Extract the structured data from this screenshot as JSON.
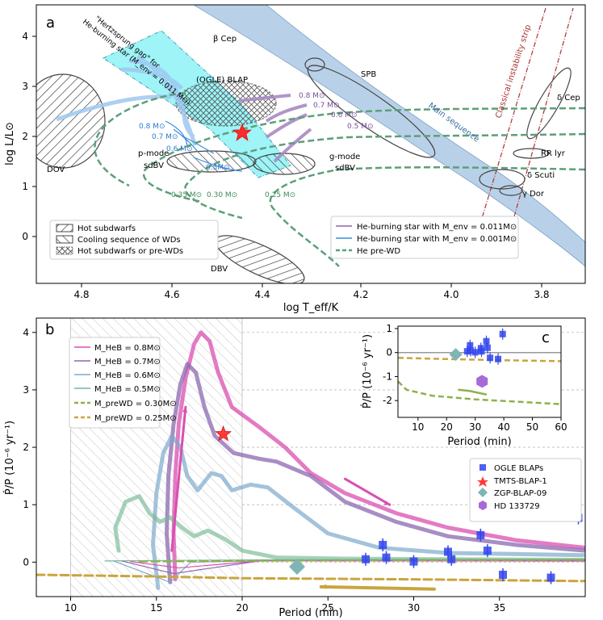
{
  "chart_data": [
    {
      "panel": "a",
      "type": "line",
      "panel_label": "a",
      "xlabel": "log T_eff/K",
      "ylabel": "log L/L⊙",
      "xlim": [
        4.9,
        3.7
      ],
      "ylim": [
        -0.95,
        4.6
      ],
      "x_ticks": [
        "4.8",
        "4.6",
        "4.4",
        "4.2",
        "4.0",
        "3.8"
      ],
      "y_ticks": [
        "0",
        "1",
        "2",
        "3",
        "4"
      ],
      "annotations": {
        "beta_cep": "β Cep",
        "spb": "SPB",
        "blap": "(OGLE) BLAP",
        "dov": "DOV",
        "dbv": "DBV",
        "psdbv_1": "p-mode",
        "psdbv_2": "sdBV",
        "gsdbv_1": "g-mode",
        "gsdbv_2": "sdBV",
        "delta_cep": "δ Cep",
        "rr_lyr": "RR lyr",
        "delta_scuti": "δ Scuti",
        "gamma_dor": "γ Dor",
        "main_sequence": "Main sequence",
        "instability_strip": "Classical instability strip",
        "hertzsprung_1": "\"Hertzsprung gap\" for",
        "hertzsprung_2": "He-burning star (M_env = 0.011 M⊙)"
      },
      "mass_labels_purple": [
        "0.8 M⊙",
        "0.7 M⊙",
        "0.6 M⊙",
        "0.5 M⊙"
      ],
      "mass_labels_blue": [
        "0.8 M⊙",
        "0.7 M⊙",
        "0.6 M⊙",
        "0.5M⊙"
      ],
      "mass_labels_green": [
        "0.35 M⊙",
        "0.30 M⊙",
        "0.25 M⊙"
      ],
      "legend_left": [
        "Hot subdwarfs",
        "Cooling sequence of WDs",
        "Hot subdwarfs or pre-WDs"
      ],
      "legend_right": [
        "He-burning star with M_env = 0.011M⊙",
        "He-burning star with M_env = 0.001M⊙",
        "He pre-WD"
      ],
      "tmts_blap_1": {
        "logT": 4.445,
        "logL": 2.05
      }
    },
    {
      "panel": "b",
      "type": "line",
      "panel_label": "b",
      "xlabel": "Period (min)",
      "ylabel": "Ṗ/P (10⁻⁶ yr⁻¹)",
      "xlim": [
        8,
        40
      ],
      "ylim": [
        -0.6,
        4.25
      ],
      "x_ticks": [
        10,
        15,
        20,
        25,
        30,
        35
      ],
      "y_ticks": [
        0,
        1,
        2,
        3,
        4
      ],
      "shaded_region": [
        10,
        20
      ],
      "legend": [
        "M_HeB = 0.8M⊙",
        "M_HeB = 0.7M⊙",
        "M_HeB = 0.6M⊙",
        "M_HeB = 0.5M⊙",
        "M_preWD = 0.30M⊙",
        "M_preWD = 0.25M⊙"
      ],
      "series_colors": {
        "m08": "#d94fb0",
        "m07": "#8b68b0",
        "m06": "#7ea9cc",
        "m05": "#74b894",
        "w30": "#8fb04c",
        "w25": "#c9a53e"
      },
      "ogle_blaps": [
        {
          "x": 27.2,
          "y": 0.05
        },
        {
          "x": 28.2,
          "y": 0.3
        },
        {
          "x": 28.4,
          "y": 0.08
        },
        {
          "x": 30.0,
          "y": 0.01
        },
        {
          "x": 32.0,
          "y": 0.18
        },
        {
          "x": 32.2,
          "y": 0.05
        },
        {
          "x": 33.9,
          "y": 0.47
        },
        {
          "x": 34.3,
          "y": 0.2
        },
        {
          "x": 35.2,
          "y": -0.22
        },
        {
          "x": 38.0,
          "y": -0.27
        },
        {
          "x": 39.6,
          "y": 0.77
        }
      ],
      "tmts_blap_1": {
        "x": 18.9,
        "y": 2.23
      },
      "zgp_blap_09": {
        "x": 23.2,
        "y": -0.08
      },
      "hd_133729": {
        "x": 32.4,
        "y": -1.2
      },
      "points_legend": [
        "OGLE BLAPs",
        "TMTS-BLAP-1",
        "ZGP-BLAP-09",
        "HD 133729"
      ]
    },
    {
      "panel": "c",
      "type": "scatter",
      "panel_label": "c",
      "xlabel": "Period (min)",
      "ylabel": "Ṗ/P (10⁻⁶ yr⁻¹)",
      "xlim": [
        3,
        60
      ],
      "ylim": [
        -2.7,
        1.1
      ],
      "x_ticks": [
        10,
        20,
        30,
        40,
        50,
        60
      ],
      "y_ticks": [
        -2,
        -1,
        0,
        1
      ]
    }
  ]
}
